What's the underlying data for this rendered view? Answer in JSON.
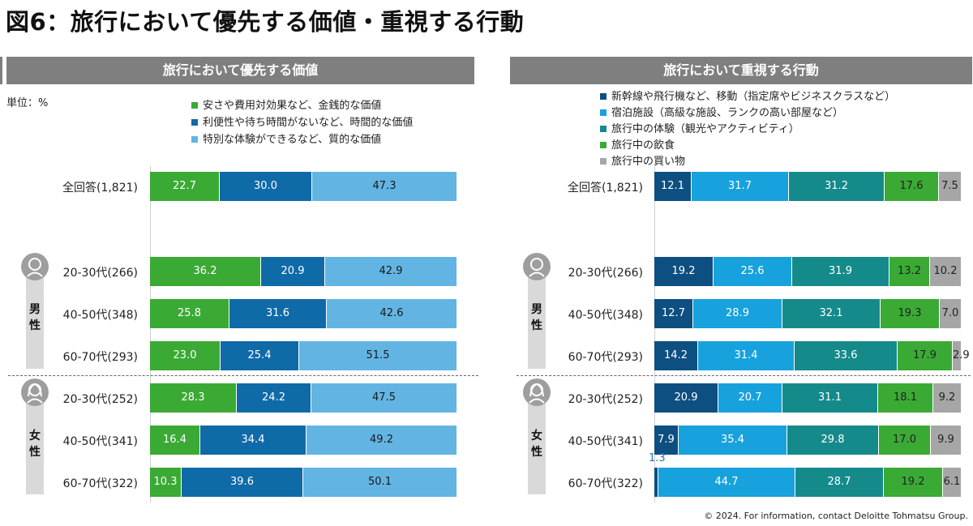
{
  "title": "図6：旅行において優先する価値・重視する行動",
  "unit": "単位：%",
  "footer": "© 2024. For information, contact Deloitte Tohmatsu Group.",
  "gender_labels": {
    "male": "男\n性",
    "female": "女\n性"
  },
  "callout": "1.3",
  "chart_data": [
    {
      "type": "bar",
      "orientation": "horizontal",
      "stacked": "100%",
      "title": "旅行において優先する価値",
      "categories": [
        "全回答(1,821)",
        "20-30代(266)",
        "40-50代(348)",
        "60-70代(293)",
        "20-30代(252)",
        "40-50代(341)",
        "60-70代(322)"
      ],
      "groups": [
        {
          "name": "男性",
          "categories": [
            1,
            2,
            3
          ]
        },
        {
          "name": "女性",
          "categories": [
            4,
            5,
            6
          ]
        }
      ],
      "series": [
        {
          "name": "安さや費用対効果など、金銭的な価値",
          "color": "#3aaa35",
          "values": [
            22.7,
            36.2,
            25.8,
            23.0,
            28.3,
            16.4,
            10.3
          ]
        },
        {
          "name": "利便性や待ち時間がないなど、時間的な価値",
          "color": "#0f6aa8",
          "values": [
            30.0,
            20.9,
            31.6,
            25.4,
            24.2,
            34.4,
            39.6
          ]
        },
        {
          "name": "特別な体験ができるなど、質的な価値",
          "color": "#62b5e3",
          "values": [
            47.3,
            42.9,
            42.6,
            51.5,
            47.5,
            49.2,
            50.1
          ]
        }
      ]
    },
    {
      "type": "bar",
      "orientation": "horizontal",
      "stacked": "100%",
      "title": "旅行において重視する行動",
      "categories": [
        "全回答(1,821)",
        "20-30代(266)",
        "40-50代(348)",
        "60-70代(293)",
        "20-30代(252)",
        "40-50代(341)",
        "60-70代(322)"
      ],
      "groups": [
        {
          "name": "男性",
          "categories": [
            1,
            2,
            3
          ]
        },
        {
          "name": "女性",
          "categories": [
            4,
            5,
            6
          ]
        }
      ],
      "series": [
        {
          "name": "新幹線や飛行機など、移動（指定席やビジネスクラスなど）",
          "color": "#0d4f80",
          "values": [
            12.1,
            19.2,
            12.7,
            14.2,
            20.9,
            7.9,
            1.3
          ]
        },
        {
          "name": "宿泊施設（高級な施設、ランクの高い部屋など）",
          "color": "#17a2dd",
          "values": [
            31.7,
            25.6,
            28.9,
            31.4,
            20.7,
            35.4,
            44.7
          ]
        },
        {
          "name": "旅行中の体験（観光やアクティビティ）",
          "color": "#158a8a",
          "values": [
            31.2,
            31.9,
            32.1,
            33.6,
            31.1,
            29.8,
            28.7
          ]
        },
        {
          "name": "旅行中の飲食",
          "color": "#3aaa35",
          "values": [
            17.6,
            13.2,
            19.3,
            17.9,
            18.1,
            17.0,
            19.2
          ]
        },
        {
          "name": "旅行中の買い物",
          "color": "#a6a6a6",
          "values": [
            7.5,
            10.2,
            7.0,
            2.9,
            9.2,
            9.9,
            6.1
          ]
        }
      ]
    }
  ]
}
